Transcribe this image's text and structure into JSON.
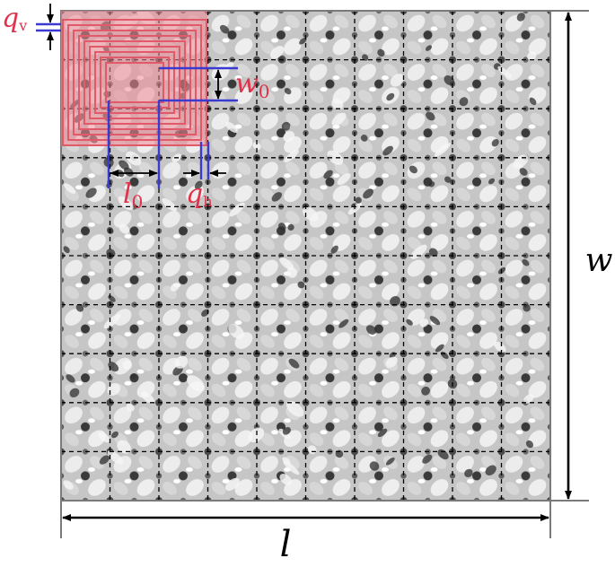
{
  "diagram": {
    "grid": {
      "columns": 10,
      "rows": 10
    },
    "colors": {
      "highlight": "#e05a68",
      "highlight_fill": "#f08b96",
      "marker": "#3a3ad0",
      "dimension": "#000000",
      "dash": "#000000",
      "label_red": "#e0324a",
      "texture_base": "#c8c8c8",
      "texture_dark": "#2a2a2a",
      "texture_light": "#f4f4f4"
    },
    "labels": {
      "length_overall": "l",
      "width_overall": "w",
      "cell_length": "l",
      "cell_length_sub": "0",
      "cell_width": "w",
      "cell_width_sub": "0",
      "gap_h": "q",
      "gap_h_sub": "h",
      "gap_v": "q",
      "gap_v_sub": "v"
    }
  }
}
